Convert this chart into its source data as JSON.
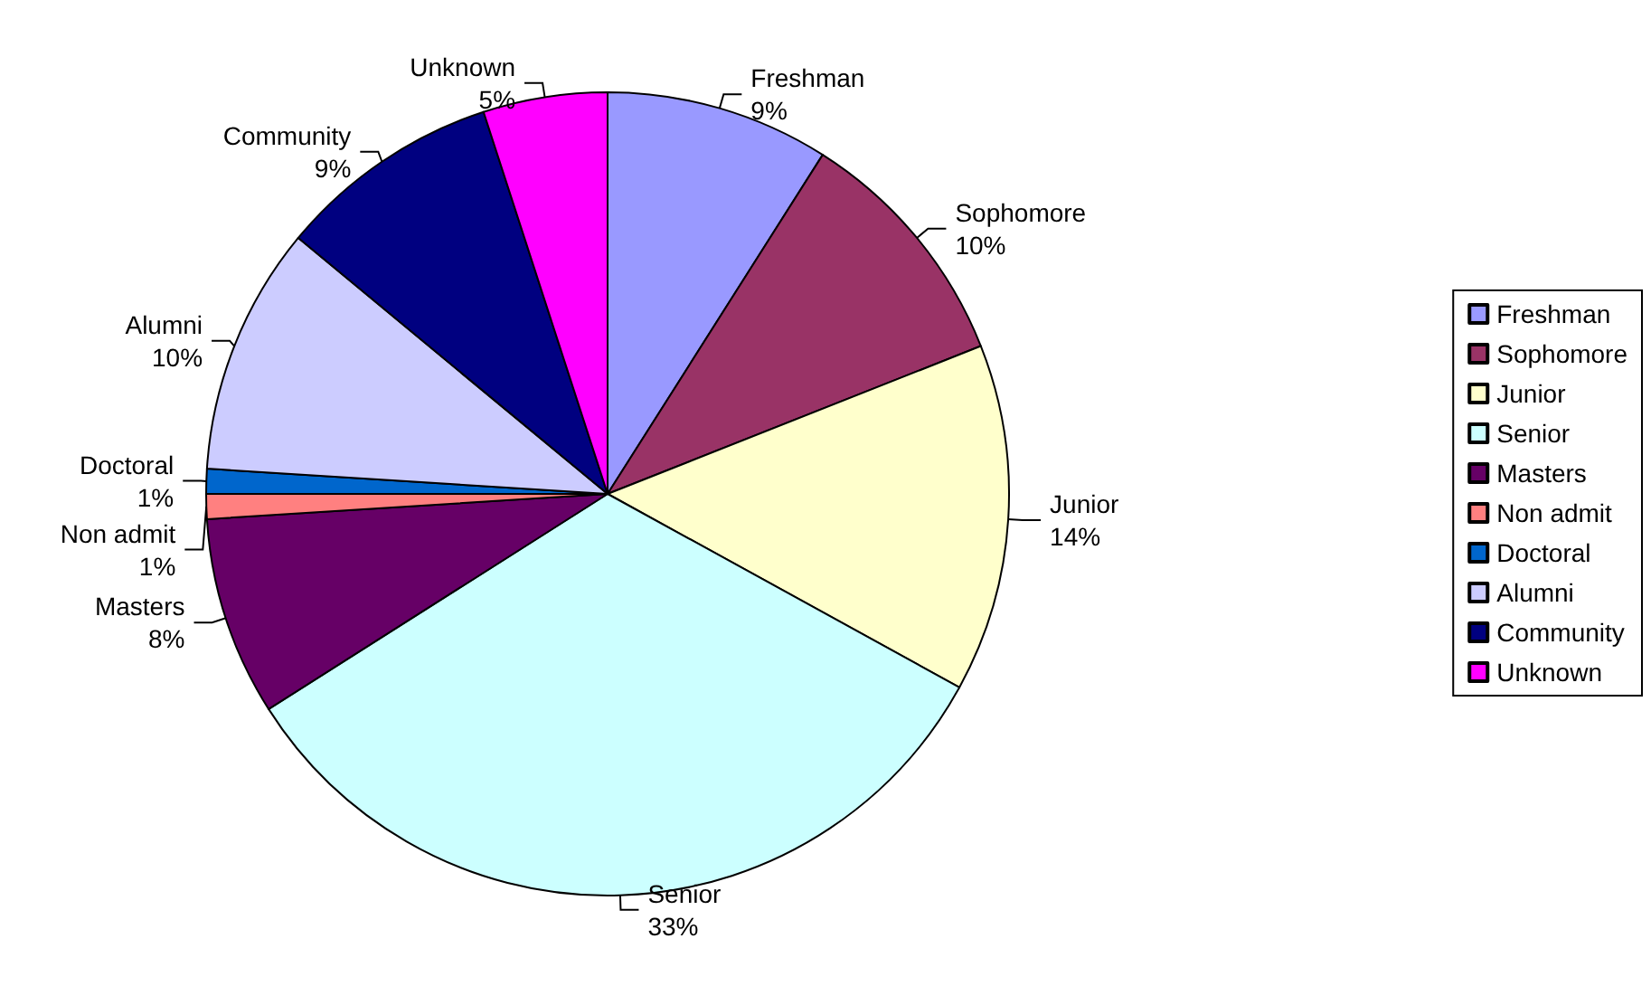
{
  "chart_data": {
    "type": "pie",
    "categories": [
      "Freshman",
      "Sophomore",
      "Junior",
      "Senior",
      "Masters",
      "Non admit",
      "Doctoral",
      "Alumni",
      "Community",
      "Unknown"
    ],
    "values": [
      9,
      10,
      14,
      33,
      8,
      1,
      1,
      10,
      9,
      5
    ],
    "value_labels": [
      "9%",
      "10%",
      "14%",
      "33%",
      "8%",
      "1%",
      "1%",
      "10%",
      "9%",
      "5%"
    ],
    "colors": [
      "#9999ff",
      "#993366",
      "#ffffcc",
      "#ccffff",
      "#660066",
      "#ff8080",
      "#0066cc",
      "#ccccff",
      "#000080",
      "#ff00ff"
    ],
    "legend": "right"
  }
}
